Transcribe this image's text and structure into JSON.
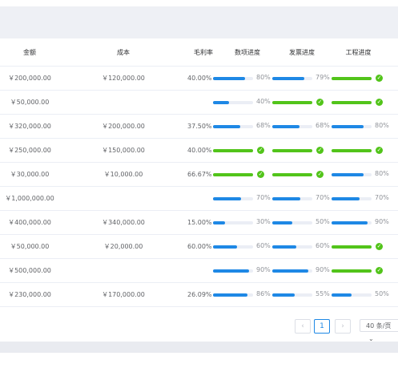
{
  "table": {
    "headers": {
      "amount": "金额",
      "cost": "成本",
      "margin": "毛利率",
      "quantity_progress": "数项进度",
      "invoice_progress": "发票进度",
      "project_progress": "工程进度"
    },
    "rows": [
      {
        "amount": "￥200,000.00",
        "cost": "￥120,000.00",
        "margin": "40.00%",
        "p1": {
          "value": 80,
          "label": "80%"
        },
        "p2": {
          "value": 79,
          "label": "79%"
        },
        "p3": {
          "value": 100,
          "label": ""
        }
      },
      {
        "amount": "￥50,000.00",
        "cost": "",
        "margin": "",
        "p1": {
          "value": 40,
          "label": "40%"
        },
        "p2": {
          "value": 100,
          "label": ""
        },
        "p3": {
          "value": 100,
          "label": ""
        }
      },
      {
        "amount": "￥320,000.00",
        "cost": "￥200,000.00",
        "margin": "37.50%",
        "p1": {
          "value": 68,
          "label": "68%"
        },
        "p2": {
          "value": 68,
          "label": "68%"
        },
        "p3": {
          "value": 80,
          "label": "80%"
        }
      },
      {
        "amount": "￥250,000.00",
        "cost": "￥150,000.00",
        "margin": "40.00%",
        "p1": {
          "value": 100,
          "label": ""
        },
        "p2": {
          "value": 100,
          "label": ""
        },
        "p3": {
          "value": 100,
          "label": ""
        }
      },
      {
        "amount": "￥30,000.00",
        "cost": "￥10,000.00",
        "margin": "66.67%",
        "p1": {
          "value": 100,
          "label": ""
        },
        "p2": {
          "value": 100,
          "label": ""
        },
        "p3": {
          "value": 80,
          "label": "80%"
        }
      },
      {
        "amount": "￥1,000,000.00",
        "cost": "",
        "margin": "",
        "p1": {
          "value": 70,
          "label": "70%"
        },
        "p2": {
          "value": 70,
          "label": "70%"
        },
        "p3": {
          "value": 70,
          "label": "70%"
        }
      },
      {
        "amount": "￥400,000.00",
        "cost": "￥340,000.00",
        "margin": "15.00%",
        "p1": {
          "value": 30,
          "label": "30%"
        },
        "p2": {
          "value": 50,
          "label": "50%"
        },
        "p3": {
          "value": 90,
          "label": "90%"
        }
      },
      {
        "amount": "￥50,000.00",
        "cost": "￥20,000.00",
        "margin": "60.00%",
        "p1": {
          "value": 60,
          "label": "60%"
        },
        "p2": {
          "value": 60,
          "label": "60%"
        },
        "p3": {
          "value": 100,
          "label": ""
        }
      },
      {
        "amount": "￥500,000.00",
        "cost": "",
        "margin": "",
        "p1": {
          "value": 90,
          "label": "90%"
        },
        "p2": {
          "value": 90,
          "label": "90%"
        },
        "p3": {
          "value": 100,
          "label": ""
        }
      },
      {
        "amount": "￥230,000.00",
        "cost": "￥170,000.00",
        "margin": "26.09%",
        "p1": {
          "value": 86,
          "label": "86%"
        },
        "p2": {
          "value": 55,
          "label": "55%"
        },
        "p3": {
          "value": 50,
          "label": "50%"
        }
      }
    ]
  },
  "pagination": {
    "prev_icon": "‹",
    "current_page": "1",
    "next_icon": "›",
    "page_size": "40 条/页",
    "dropdown_icon": "⌄"
  },
  "icons": {
    "complete": "✓"
  },
  "colors": {
    "progress_blue": "#1e88e5",
    "progress_green": "#52c41a"
  }
}
